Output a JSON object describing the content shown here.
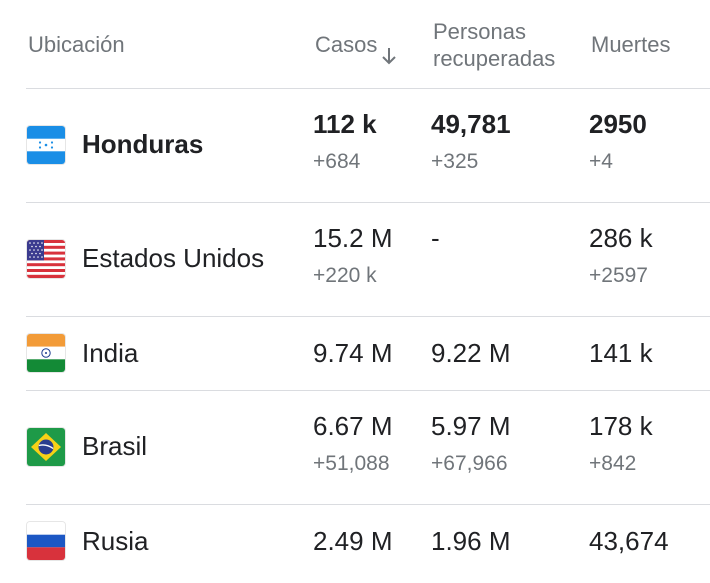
{
  "header": {
    "location": "Ubicación",
    "cases": "Casos",
    "recovered_line1": "Personas",
    "recovered_line2": "recuperadas",
    "deaths": "Muertes"
  },
  "rows": [
    {
      "country": "Honduras",
      "flag": "honduras-flag",
      "cases": "112 k",
      "cases_delta": "+684",
      "recovered": "49,781",
      "recovered_delta": "+325",
      "deaths": "2950",
      "deaths_delta": "+4"
    },
    {
      "country": "Estados Unidos",
      "flag": "usa-flag",
      "cases": "15.2 M",
      "cases_delta": "+220 k",
      "recovered": "-",
      "recovered_delta": "",
      "deaths": "286 k",
      "deaths_delta": "+2597"
    },
    {
      "country": "India",
      "flag": "india-flag",
      "cases": "9.74 M",
      "cases_delta": "",
      "recovered": "9.22 M",
      "recovered_delta": "",
      "deaths": "141 k",
      "deaths_delta": ""
    },
    {
      "country": "Brasil",
      "flag": "brazil-flag",
      "cases": "6.67 M",
      "cases_delta": "+51,088",
      "recovered": "5.97 M",
      "recovered_delta": "+67,966",
      "deaths": "178 k",
      "deaths_delta": "+842"
    },
    {
      "country": "Rusia",
      "flag": "russia-flag",
      "cases": "2.49 M",
      "cases_delta": "",
      "recovered": "1.96 M",
      "recovered_delta": "",
      "deaths": "43,674",
      "deaths_delta": ""
    }
  ]
}
